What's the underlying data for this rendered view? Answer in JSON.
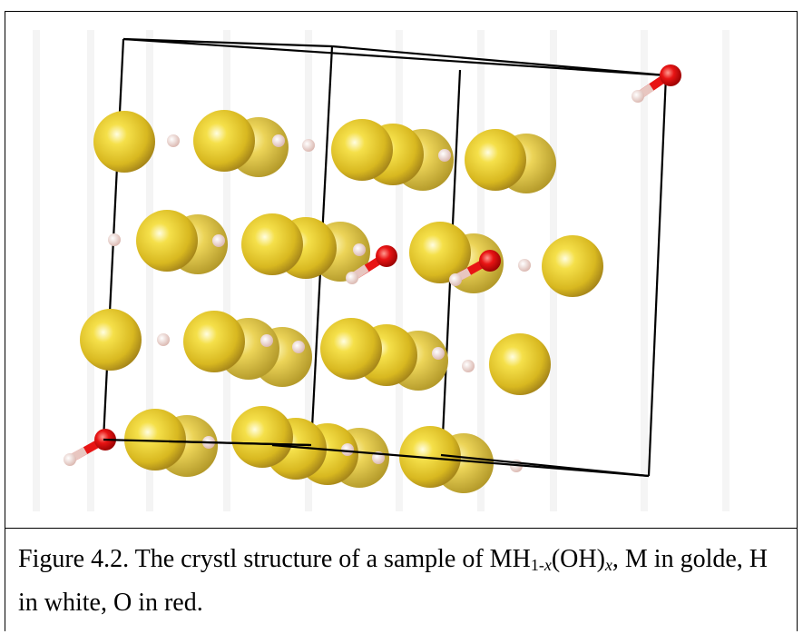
{
  "figure": {
    "atom_colors": {
      "metal": "#e6c72e",
      "hydrogen": "#f0d8d2",
      "oxygen": "#e01010",
      "cell_edge": "#000000"
    }
  },
  "caption": {
    "prefix": "Figure 4.2. The crystl structure of a sample of MH",
    "sub1_pre": "1-",
    "sub1_var": "x",
    "mid": "(OH)",
    "sub2_var": "x",
    "suffix": ", M in golde, H in white, O in red."
  }
}
